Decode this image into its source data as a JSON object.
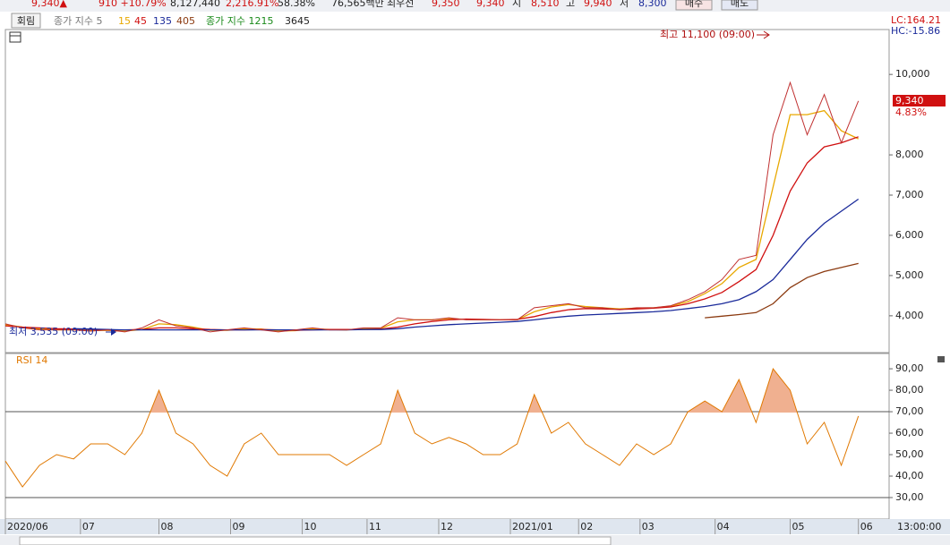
{
  "header": {
    "items": [
      "9,340▲",
      "910 +10.79%",
      "8,127,440",
      "2,216.91%",
      "58.38%",
      "76,565백만",
      "최우선",
      "9,350",
      "9,340",
      "시",
      "8,510",
      "고",
      "9,940",
      "저",
      "8,300"
    ],
    "buttons": [
      "매수",
      "매도"
    ]
  },
  "toolbar": {
    "button": "회림",
    "legend_extra": [
      "종가 지수 1215",
      "3645"
    ],
    "legend_prefix": "종가 지수 5"
  },
  "chart_data": [
    {
      "type": "line",
      "x": [
        0,
        5,
        10,
        15,
        20,
        25,
        30,
        35,
        40,
        45,
        50,
        55,
        60,
        65,
        70,
        75,
        80,
        85,
        90,
        95,
        100,
        105,
        110,
        115,
        120,
        125,
        130,
        135,
        140,
        145,
        150,
        155,
        160,
        165,
        170,
        175,
        180,
        185,
        190,
        195,
        200,
        205,
        210,
        215,
        220,
        225,
        230,
        235,
        240,
        245,
        250
      ],
      "values": [
        3800,
        3700,
        3650,
        3650,
        3650,
        3620,
        3650,
        3600,
        3700,
        3900,
        3750,
        3700,
        3600,
        3650,
        3700,
        3650,
        3600,
        3650,
        3700,
        3650,
        3650,
        3700,
        3700,
        3950,
        3900,
        3900,
        3950,
        3900,
        3900,
        3900,
        3900,
        4200,
        4250,
        4300,
        4200,
        4200,
        4150,
        4200,
        4200,
        4250,
        4400,
        4600,
        4900,
        5400,
        5500,
        8500,
        9800,
        8500,
        9500,
        8300,
        9340
      ],
      "color": "#c03030",
      "series": [
        {
          "name": "15",
          "color": "#e8a800",
          "values": [
            3780,
            3720,
            3670,
            3650,
            3650,
            3630,
            3640,
            3620,
            3660,
            3800,
            3780,
            3720,
            3640,
            3640,
            3680,
            3670,
            3620,
            3630,
            3680,
            3660,
            3650,
            3680,
            3690,
            3850,
            3900,
            3900,
            3930,
            3910,
            3900,
            3900,
            3900,
            4100,
            4220,
            4280,
            4230,
            4200,
            4170,
            4190,
            4200,
            4240,
            4350,
            4550,
            4800,
            5200,
            5400,
            7200,
            9000,
            9000,
            9100,
            8600,
            8400
          ]
        },
        {
          "name": "45",
          "color": "#d01010",
          "values": [
            3750,
            3720,
            3700,
            3680,
            3670,
            3660,
            3650,
            3650,
            3660,
            3700,
            3700,
            3680,
            3660,
            3650,
            3650,
            3660,
            3650,
            3640,
            3650,
            3660,
            3660,
            3660,
            3670,
            3720,
            3800,
            3860,
            3900,
            3920,
            3910,
            3900,
            3910,
            3980,
            4080,
            4150,
            4180,
            4170,
            4160,
            4170,
            4190,
            4220,
            4300,
            4420,
            4580,
            4850,
            5150,
            6000,
            7100,
            7800,
            8200,
            8300,
            8450
          ]
        },
        {
          "name": "135",
          "color": "#1a2a9a",
          "values": [
            null,
            null,
            null,
            null,
            3680,
            3670,
            3660,
            3650,
            3650,
            3650,
            3650,
            3650,
            3650,
            3650,
            3650,
            3650,
            3650,
            3650,
            3650,
            3650,
            3650,
            3660,
            3660,
            3680,
            3720,
            3750,
            3780,
            3800,
            3820,
            3840,
            3860,
            3900,
            3950,
            3990,
            4020,
            4040,
            4060,
            4080,
            4100,
            4130,
            4180,
            4230,
            4300,
            4400,
            4600,
            4900,
            5400,
            5900,
            6300,
            6600,
            6900
          ]
        },
        {
          "name": "405",
          "color": "#8b3a10",
          "values": [
            null,
            null,
            null,
            null,
            null,
            null,
            null,
            null,
            null,
            null,
            null,
            null,
            null,
            null,
            null,
            null,
            null,
            null,
            null,
            null,
            null,
            null,
            null,
            null,
            null,
            null,
            null,
            null,
            null,
            null,
            null,
            null,
            null,
            null,
            null,
            null,
            null,
            null,
            null,
            null,
            null,
            3950,
            3990,
            4030,
            4080,
            4300,
            4700,
            4950,
            5100,
            5200,
            5300
          ]
        }
      ],
      "xlim": [
        0,
        259
      ],
      "ylim": [
        3085,
        11116
      ],
      "yticks": [
        {
          "value": 4000,
          "label": "4,000"
        },
        {
          "value": 5000,
          "label": "5,000"
        },
        {
          "value": 6000,
          "label": "6,000"
        },
        {
          "value": 7000,
          "label": "7,000"
        },
        {
          "value": 8000,
          "label": "8,000"
        },
        {
          "value": 10000,
          "label": "10,000"
        }
      ],
      "high_label": "최고 11,100 (09:00)",
      "low_label": "최저 3,535 (09:00)",
      "last_price": "9,340",
      "change": "4.83%",
      "lc": "LC:164.21",
      "hc": "HC:-15.86"
    },
    {
      "type": "rsi",
      "title": "RSI 14",
      "color": "#e07800",
      "x": [
        0,
        5,
        10,
        15,
        20,
        25,
        30,
        35,
        40,
        45,
        50,
        55,
        60,
        65,
        70,
        75,
        80,
        85,
        90,
        95,
        100,
        105,
        110,
        115,
        120,
        125,
        130,
        135,
        140,
        145,
        150,
        155,
        160,
        165,
        170,
        175,
        180,
        185,
        190,
        195,
        200,
        205,
        210,
        215,
        220,
        225,
        230,
        235,
        240,
        245,
        250
      ],
      "values": [
        47,
        35,
        45,
        50,
        48,
        55,
        55,
        50,
        60,
        80,
        60,
        55,
        45,
        40,
        55,
        60,
        50,
        50,
        50,
        50,
        45,
        50,
        55,
        80,
        60,
        55,
        58,
        55,
        50,
        50,
        55,
        78,
        60,
        65,
        55,
        50,
        45,
        55,
        50,
        55,
        70,
        75,
        70,
        85,
        65,
        90,
        80,
        55,
        65,
        45,
        68
      ],
      "xlim": [
        0,
        259
      ],
      "ylim": [
        20,
        96.7
      ],
      "yticks": [
        {
          "value": 30,
          "label": "30,00"
        },
        {
          "value": 40,
          "label": "40,00"
        },
        {
          "value": 50,
          "label": "50,00"
        },
        {
          "value": 60,
          "label": "60,00"
        },
        {
          "value": 70,
          "label": "70,00"
        },
        {
          "value": 80,
          "label": "80,00"
        },
        {
          "value": 90,
          "label": "90,00"
        }
      ],
      "ref_lines": [
        70,
        30
      ],
      "xticks": [
        {
          "value": 0,
          "label": "2020/06"
        },
        {
          "value": 22,
          "label": "07"
        },
        {
          "value": 45,
          "label": "08"
        },
        {
          "value": 66,
          "label": "09"
        },
        {
          "value": 87,
          "label": "10"
        },
        {
          "value": 106,
          "label": "11"
        },
        {
          "value": 127,
          "label": "12"
        },
        {
          "value": 148,
          "label": "2021/01"
        },
        {
          "value": 168,
          "label": "02"
        },
        {
          "value": 186,
          "label": "03"
        },
        {
          "value": 208,
          "label": "04"
        },
        {
          "value": 230,
          "label": "05"
        },
        {
          "value": 250,
          "label": "06"
        }
      ],
      "time_label": "13:00:00"
    }
  ]
}
